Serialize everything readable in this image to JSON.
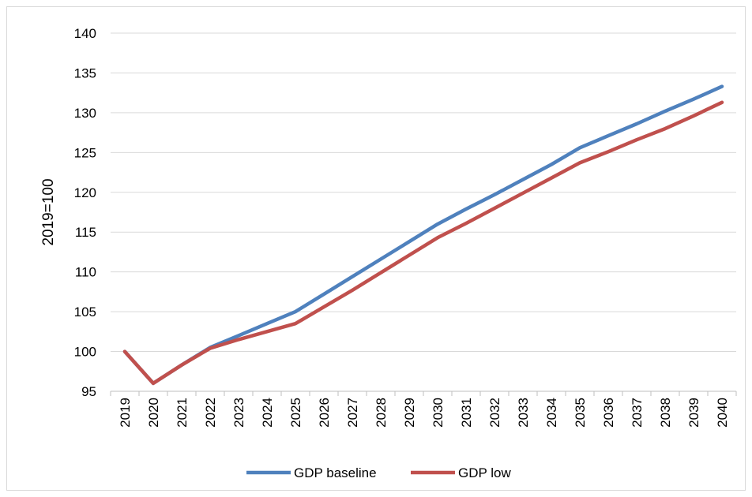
{
  "chart_data": {
    "type": "line",
    "title": "",
    "xlabel": "",
    "ylabel": "2019=100",
    "x": [
      "2019",
      "2020",
      "2021",
      "2022",
      "2023",
      "2024",
      "2025",
      "2026",
      "2027",
      "2028",
      "2029",
      "2030",
      "2031",
      "2032",
      "2033",
      "2034",
      "2035",
      "2036",
      "2037",
      "2038",
      "2039",
      "2040"
    ],
    "ylim": [
      95,
      140
    ],
    "yticks": [
      95,
      100,
      105,
      110,
      115,
      120,
      125,
      130,
      135,
      140
    ],
    "grid": "horizontal",
    "legend": "bottom",
    "series": [
      {
        "name": "GDP baseline",
        "color": "#4f81bd",
        "values": [
          100,
          96,
          98.3,
          100.5,
          102,
          103.5,
          105,
          107.2,
          109.4,
          111.6,
          113.8,
          116,
          117.9,
          119.7,
          121.6,
          123.5,
          125.6,
          127.1,
          128.6,
          130.2,
          131.7,
          133.3
        ]
      },
      {
        "name": "GDP low",
        "color": "#c0504d",
        "values": [
          100,
          96,
          98.3,
          100.4,
          101.5,
          102.5,
          103.5,
          105.6,
          107.7,
          109.9,
          112.1,
          114.3,
          116.1,
          118,
          119.9,
          121.8,
          123.7,
          125.1,
          126.6,
          128,
          129.6,
          131.3
        ]
      }
    ]
  }
}
